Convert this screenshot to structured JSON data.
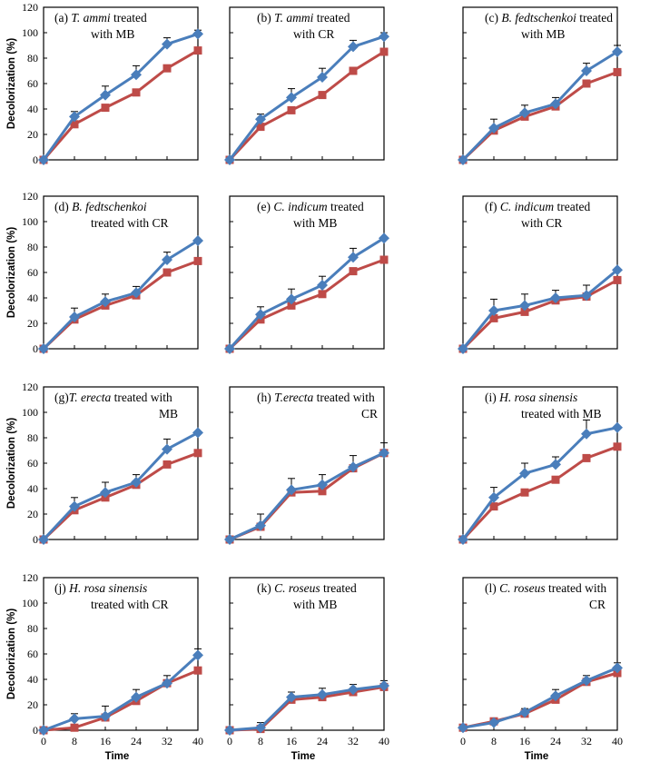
{
  "figure": {
    "ylabel": "Decolorization (%)",
    "xlabel": "Time",
    "colors": {
      "series_a": "#4a7ebb",
      "series_b": "#be4b48",
      "error_bar": "#000000"
    }
  },
  "chart_data": [
    {
      "id": "a",
      "type": "line",
      "title_lines": [
        [
          {
            "t": "(a) ",
            "i": false
          },
          {
            "t": "T. ammi",
            "i": true
          },
          {
            "t": " treated",
            "i": false
          }
        ],
        [
          {
            "t": "with MB",
            "i": false
          }
        ]
      ],
      "x": [
        0,
        8,
        16,
        24,
        32,
        40
      ],
      "ylim": [
        0,
        120
      ],
      "xlim": [
        0,
        40
      ],
      "series": [
        {
          "values": [
            0,
            34,
            51,
            67,
            91,
            99
          ],
          "errors": [
            0,
            4,
            7,
            7,
            5,
            3
          ]
        },
        {
          "values": [
            0,
            28,
            41,
            53,
            72,
            86
          ],
          "errors": [
            0,
            0,
            0,
            4,
            6,
            0
          ]
        }
      ]
    },
    {
      "id": "b",
      "type": "line",
      "title_lines": [
        [
          {
            "t": "(b) ",
            "i": false
          },
          {
            "t": "T. ammi",
            "i": true
          },
          {
            "t": " treated",
            "i": false
          }
        ],
        [
          {
            "t": "with CR",
            "i": false
          }
        ]
      ],
      "x": [
        0,
        8,
        16,
        24,
        32,
        40
      ],
      "ylim": [
        0,
        120
      ],
      "xlim": [
        0,
        40
      ],
      "series": [
        {
          "values": [
            0,
            32,
            49,
            65,
            89,
            97
          ],
          "errors": [
            0,
            4,
            7,
            7,
            5,
            3
          ]
        },
        {
          "values": [
            0,
            26,
            39,
            51,
            70,
            85
          ],
          "errors": [
            0,
            0,
            0,
            4,
            5,
            0
          ]
        }
      ]
    },
    {
      "id": "c",
      "type": "line",
      "title_lines": [
        [
          {
            "t": "(c) ",
            "i": false
          },
          {
            "t": "B. fedtschenkoi",
            "i": true
          },
          {
            "t": " treated",
            "i": false
          }
        ],
        [
          {
            "t": "with MB",
            "i": false
          }
        ]
      ],
      "x": [
        0,
        8,
        16,
        24,
        32,
        40
      ],
      "ylim": [
        0,
        120
      ],
      "xlim": [
        0,
        40
      ],
      "series": [
        {
          "values": [
            0,
            25,
            37,
            44,
            70,
            85
          ],
          "errors": [
            0,
            7,
            6,
            5,
            6,
            5
          ]
        },
        {
          "values": [
            0,
            23,
            34,
            42,
            60,
            69
          ],
          "errors": [
            0,
            0,
            0,
            0,
            0,
            0
          ]
        }
      ]
    },
    {
      "id": "d",
      "type": "line",
      "title_lines": [
        [
          {
            "t": "(d) ",
            "i": false
          },
          {
            "t": "B. fedtschenkoi",
            "i": true
          }
        ],
        [
          {
            "t": "treated with CR",
            "i": false
          }
        ]
      ],
      "x": [
        0,
        8,
        16,
        24,
        32,
        40
      ],
      "ylim": [
        0,
        120
      ],
      "xlim": [
        0,
        40
      ],
      "series": [
        {
          "values": [
            0,
            25,
            37,
            44,
            70,
            85
          ],
          "errors": [
            0,
            7,
            6,
            5,
            6,
            0
          ]
        },
        {
          "values": [
            0,
            23,
            34,
            42,
            60,
            69
          ],
          "errors": [
            0,
            0,
            0,
            0,
            0,
            0
          ]
        }
      ]
    },
    {
      "id": "e",
      "type": "line",
      "title_lines": [
        [
          {
            "t": "(e) ",
            "i": false
          },
          {
            "t": "C. indicum",
            "i": true
          },
          {
            "t": " treated",
            "i": false
          }
        ],
        [
          {
            "t": "with MB",
            "i": false
          }
        ]
      ],
      "x": [
        0,
        8,
        16,
        24,
        32,
        40
      ],
      "ylim": [
        0,
        120
      ],
      "xlim": [
        0,
        40
      ],
      "series": [
        {
          "values": [
            0,
            27,
            39,
            50,
            72,
            87
          ],
          "errors": [
            0,
            6,
            8,
            7,
            7,
            0
          ]
        },
        {
          "values": [
            0,
            23,
            34,
            43,
            61,
            70
          ],
          "errors": [
            0,
            0,
            0,
            0,
            0,
            0
          ]
        }
      ]
    },
    {
      "id": "f",
      "type": "line",
      "title_lines": [
        [
          {
            "t": "(f) ",
            "i": false
          },
          {
            "t": "C. indicum",
            "i": true
          },
          {
            "t": " treated",
            "i": false
          }
        ],
        [
          {
            "t": "with CR",
            "i": false
          }
        ]
      ],
      "x": [
        0,
        8,
        16,
        24,
        32,
        40
      ],
      "ylim": [
        0,
        120
      ],
      "xlim": [
        0,
        40
      ],
      "series": [
        {
          "values": [
            0,
            30,
            34,
            40,
            42,
            62
          ],
          "errors": [
            0,
            9,
            9,
            6,
            8,
            0
          ]
        },
        {
          "values": [
            0,
            24,
            29,
            38,
            41,
            54
          ],
          "errors": [
            0,
            0,
            0,
            0,
            0,
            0
          ]
        }
      ]
    },
    {
      "id": "g",
      "type": "line",
      "title_lines": [
        [
          {
            "t": "(g)",
            "i": false
          },
          {
            "t": "T. erecta",
            "i": true
          },
          {
            "t": " treated with",
            "i": false
          }
        ],
        [
          {
            "t": "MB",
            "i": false
          }
        ]
      ],
      "x": [
        0,
        8,
        16,
        24,
        32,
        40
      ],
      "ylim": [
        0,
        120
      ],
      "xlim": [
        0,
        40
      ],
      "series": [
        {
          "values": [
            0,
            26,
            37,
            45,
            71,
            84
          ],
          "errors": [
            0,
            7,
            8,
            6,
            8,
            0
          ]
        },
        {
          "values": [
            0,
            23,
            33,
            43,
            59,
            68
          ],
          "errors": [
            0,
            0,
            0,
            0,
            0,
            0
          ]
        }
      ]
    },
    {
      "id": "h",
      "type": "line",
      "title_lines": [
        [
          {
            "t": "(h) ",
            "i": false
          },
          {
            "t": "T.erecta",
            "i": true
          },
          {
            "t": " treated with",
            "i": false
          }
        ],
        [
          {
            "t": "CR",
            "i": false
          }
        ]
      ],
      "x": [
        0,
        8,
        16,
        24,
        32,
        40
      ],
      "ylim": [
        0,
        120
      ],
      "xlim": [
        0,
        40
      ],
      "series": [
        {
          "values": [
            0,
            11,
            39,
            43,
            57,
            68
          ],
          "errors": [
            0,
            9,
            9,
            8,
            9,
            8
          ]
        },
        {
          "values": [
            0,
            10,
            37,
            38,
            56,
            68
          ],
          "errors": [
            0,
            0,
            0,
            0,
            0,
            0
          ]
        }
      ]
    },
    {
      "id": "i",
      "type": "line",
      "title_lines": [
        [
          {
            "t": "(i) ",
            "i": false
          },
          {
            "t": "H. rosa sinensis",
            "i": true
          }
        ],
        [
          {
            "t": "treated with MB",
            "i": false
          }
        ]
      ],
      "x": [
        0,
        8,
        16,
        24,
        32,
        40
      ],
      "ylim": [
        0,
        120
      ],
      "xlim": [
        0,
        40
      ],
      "series": [
        {
          "values": [
            0,
            33,
            52,
            59,
            83,
            88
          ],
          "errors": [
            0,
            8,
            8,
            6,
            11,
            0
          ]
        },
        {
          "values": [
            0,
            26,
            37,
            47,
            64,
            73
          ],
          "errors": [
            0,
            0,
            0,
            0,
            0,
            0
          ]
        }
      ]
    },
    {
      "id": "j",
      "type": "line",
      "title_lines": [
        [
          {
            "t": "(j) ",
            "i": false
          },
          {
            "t": "H. rosa sinensis",
            "i": true
          }
        ],
        [
          {
            "t": "treated with CR",
            "i": false
          }
        ]
      ],
      "x": [
        0,
        8,
        16,
        24,
        32,
        40
      ],
      "ylim": [
        0,
        120
      ],
      "xlim": [
        0,
        40
      ],
      "series": [
        {
          "values": [
            0,
            9,
            11,
            26,
            37,
            59
          ],
          "errors": [
            0,
            4,
            8,
            6,
            6,
            5
          ]
        },
        {
          "values": [
            0,
            2,
            10,
            23,
            37,
            47
          ],
          "errors": [
            0,
            0,
            0,
            0,
            0,
            0
          ]
        }
      ]
    },
    {
      "id": "k",
      "type": "line",
      "title_lines": [
        [
          {
            "t": "(k) ",
            "i": false
          },
          {
            "t": "C. roseus",
            "i": true
          },
          {
            "t": " treated",
            "i": false
          }
        ],
        [
          {
            "t": "with MB",
            "i": false
          }
        ]
      ],
      "x": [
        0,
        8,
        16,
        24,
        32,
        40
      ],
      "ylim": [
        0,
        120
      ],
      "xlim": [
        0,
        40
      ],
      "series": [
        {
          "values": [
            0,
            2,
            26,
            28,
            32,
            35
          ],
          "errors": [
            0,
            4,
            4,
            5,
            4,
            4
          ]
        },
        {
          "values": [
            0,
            1,
            24,
            26,
            30,
            34
          ],
          "errors": [
            0,
            0,
            0,
            0,
            0,
            0
          ]
        }
      ]
    },
    {
      "id": "l",
      "type": "line",
      "title_lines": [
        [
          {
            "t": "(l) ",
            "i": false
          },
          {
            "t": "C. roseus",
            "i": true
          },
          {
            "t": " treated with",
            "i": false
          }
        ],
        [
          {
            "t": "CR",
            "i": false
          }
        ]
      ],
      "x": [
        0,
        8,
        16,
        24,
        32,
        40
      ],
      "ylim": [
        0,
        120
      ],
      "xlim": [
        0,
        40
      ],
      "series": [
        {
          "values": [
            2,
            6,
            14,
            27,
            39,
            49
          ],
          "errors": [
            0,
            3,
            3,
            5,
            4,
            4
          ]
        },
        {
          "values": [
            2,
            7,
            13,
            24,
            38,
            45
          ],
          "errors": [
            0,
            0,
            0,
            0,
            0,
            0
          ]
        }
      ]
    }
  ]
}
